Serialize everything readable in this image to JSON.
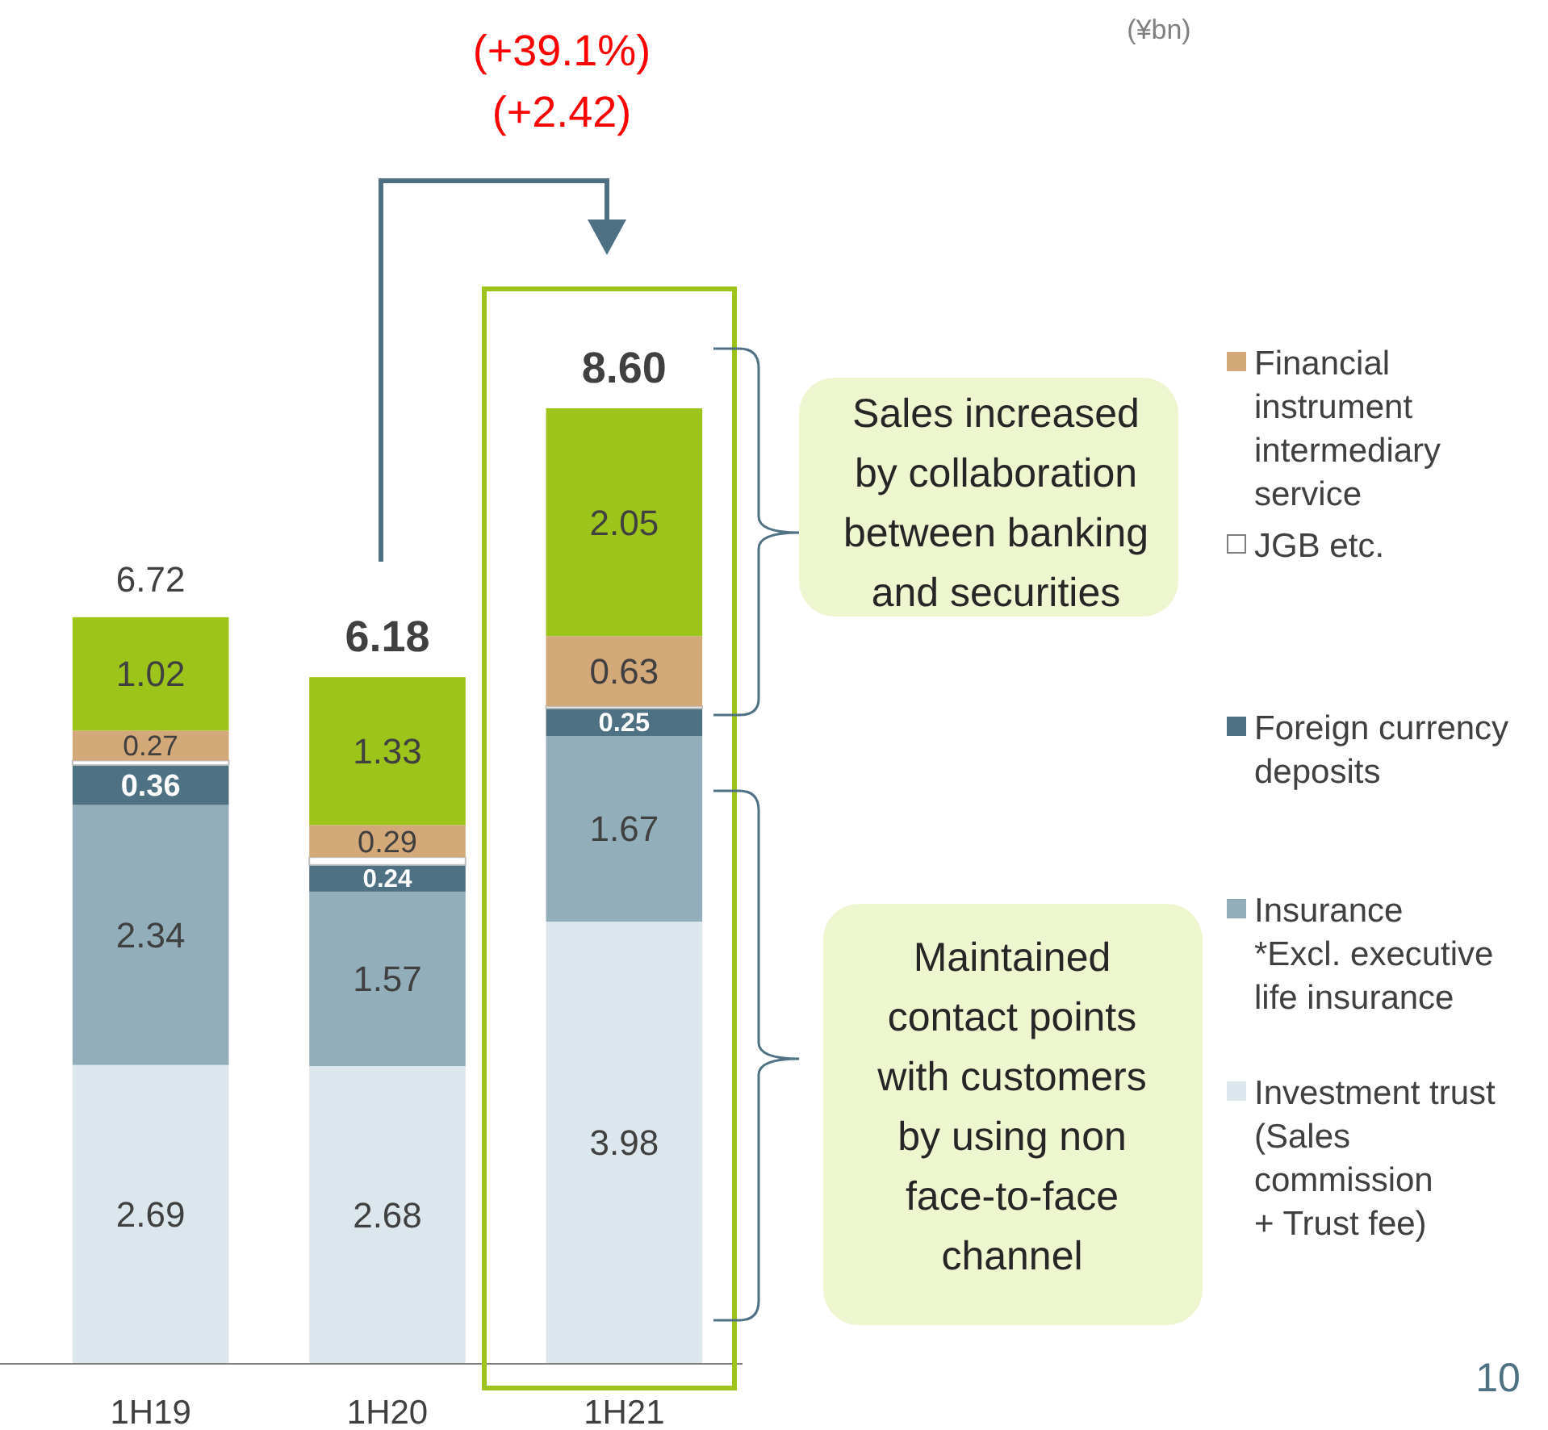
{
  "chart_data": {
    "type": "bar",
    "stacked": true,
    "data_labels": true,
    "legend": "right",
    "categories": [
      "1H19",
      "1H20",
      "1H21"
    ],
    "series": [
      {
        "name": "Investment trust\n(Sales\ncommission\n+ Trust fee)",
        "color": "#dce6ed",
        "values": [
          2.69,
          2.68,
          3.98
        ]
      },
      {
        "name": "Insurance\n*Excl. executive\nlife insurance",
        "color": "#92aebb",
        "values": [
          2.34,
          1.57,
          1.67
        ]
      },
      {
        "name": "Foreign currency\ndeposits",
        "color": "#4e7283",
        "values": [
          0.36,
          0.24,
          0.25
        ]
      },
      {
        "name": "JGB etc.",
        "color": "#ffffff",
        "values": [
          0.04,
          0.07,
          0.02
        ],
        "value_labels": [
          null,
          null,
          null
        ]
      },
      {
        "name": "Financial\ninstrument\nintermediary\nservice",
        "color": "#d4a97a",
        "values": [
          0.27,
          0.29,
          0.63
        ]
      },
      {
        "color": "#9dc41a",
        "values": [
          1.02,
          1.33,
          2.05
        ]
      }
    ],
    "totals": [
      "6.72",
      "6.18",
      "8.60"
    ],
    "annotations": [
      "(+39.1%)",
      "(+2.42)",
      "(¥bn)",
      "Sales increased\nby collaboration\nbetween banking\nand securities",
      "Maintained\ncontact points\nwith customers\nby using non\nface-to-face\nchannel",
      "10"
    ]
  }
}
